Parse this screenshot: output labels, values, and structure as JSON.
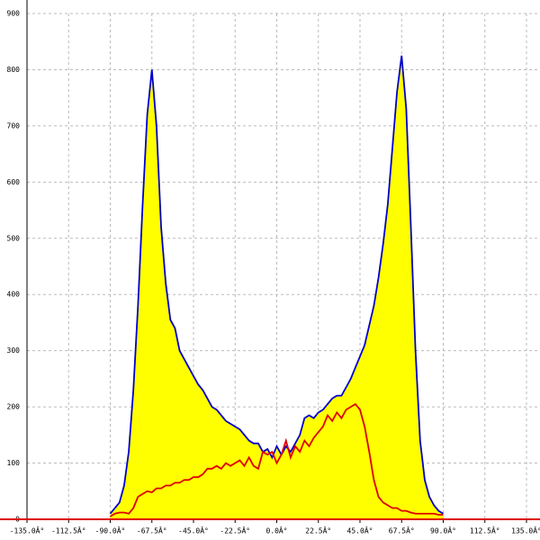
{
  "chart_data": {
    "type": "area",
    "x": [
      -90,
      -87.5,
      -85,
      -82.5,
      -80,
      -77.5,
      -75,
      -72.5,
      -70,
      -67.5,
      -65,
      -62.5,
      -60,
      -57.5,
      -55,
      -52.5,
      -50,
      -47.5,
      -45,
      -42.5,
      -40,
      -37.5,
      -35,
      -32.5,
      -30,
      -27.5,
      -25,
      -22.5,
      -20,
      -17.5,
      -15,
      -12.5,
      -10,
      -7.5,
      -5,
      -2.5,
      0,
      2.5,
      5,
      7.5,
      10,
      12.5,
      15,
      17.5,
      20,
      22.5,
      25,
      27.5,
      30,
      32.5,
      35,
      37.5,
      40,
      42.5,
      45,
      47.5,
      50,
      52.5,
      55,
      57.5,
      60,
      62.5,
      65,
      67.5,
      70,
      72.5,
      75,
      77.5,
      80,
      82.5,
      85,
      87.5,
      90
    ],
    "series": [
      {
        "color": "#0000cc",
        "fill": "#ffff00",
        "values": [
          10,
          20,
          30,
          60,
          120,
          230,
          380,
          560,
          720,
          800,
          700,
          520,
          420,
          355,
          340,
          300,
          285,
          270,
          255,
          240,
          230,
          215,
          200,
          195,
          185,
          175,
          170,
          165,
          160,
          150,
          140,
          135,
          135,
          120,
          125,
          110,
          130,
          115,
          130,
          120,
          135,
          150,
          180,
          185,
          180,
          190,
          195,
          205,
          215,
          220,
          220,
          235,
          250,
          270,
          290,
          310,
          345,
          380,
          430,
          490,
          560,
          660,
          760,
          825,
          730,
          520,
          300,
          140,
          70,
          40,
          25,
          15,
          10
        ]
      },
      {
        "color": "#dd0000",
        "values": [
          5,
          10,
          12,
          12,
          10,
          20,
          40,
          45,
          50,
          48,
          55,
          55,
          60,
          60,
          65,
          65,
          70,
          70,
          75,
          75,
          80,
          90,
          90,
          95,
          90,
          100,
          95,
          100,
          105,
          95,
          110,
          95,
          90,
          120,
          115,
          120,
          100,
          115,
          140,
          110,
          130,
          120,
          140,
          130,
          145,
          155,
          165,
          185,
          175,
          190,
          180,
          195,
          200,
          205,
          195,
          165,
          120,
          70,
          40,
          30,
          25,
          20,
          20,
          15,
          15,
          12,
          10,
          10,
          10,
          10,
          10,
          8,
          8
        ]
      }
    ],
    "xlim": [
      -135,
      135
    ],
    "xticks": [
      {
        "value": -135,
        "label": "-135.0Â°"
      },
      {
        "value": -112.5,
        "label": "-112.5Â°"
      },
      {
        "value": -90,
        "label": "-90.0Â°"
      },
      {
        "value": -67.5,
        "label": "-67.5Â°"
      },
      {
        "value": -45,
        "label": "-45.0Â°"
      },
      {
        "value": -22.5,
        "label": "-22.5Â°"
      },
      {
        "value": 0,
        "label": "0.0Â°"
      },
      {
        "value": 22.5,
        "label": "22.5Â°"
      },
      {
        "value": 45,
        "label": "45.0Â°"
      },
      {
        "value": 67.5,
        "label": "67.5Â°"
      },
      {
        "value": 90,
        "label": "90.0Â°"
      },
      {
        "value": 112.5,
        "label": "112.5Â°"
      },
      {
        "value": 135,
        "label": "135.0Â°"
      }
    ],
    "ylim": [
      0,
      900
    ],
    "yticks": [
      0,
      100,
      200,
      300,
      400,
      500,
      600,
      700,
      800,
      900
    ],
    "grid": true
  }
}
